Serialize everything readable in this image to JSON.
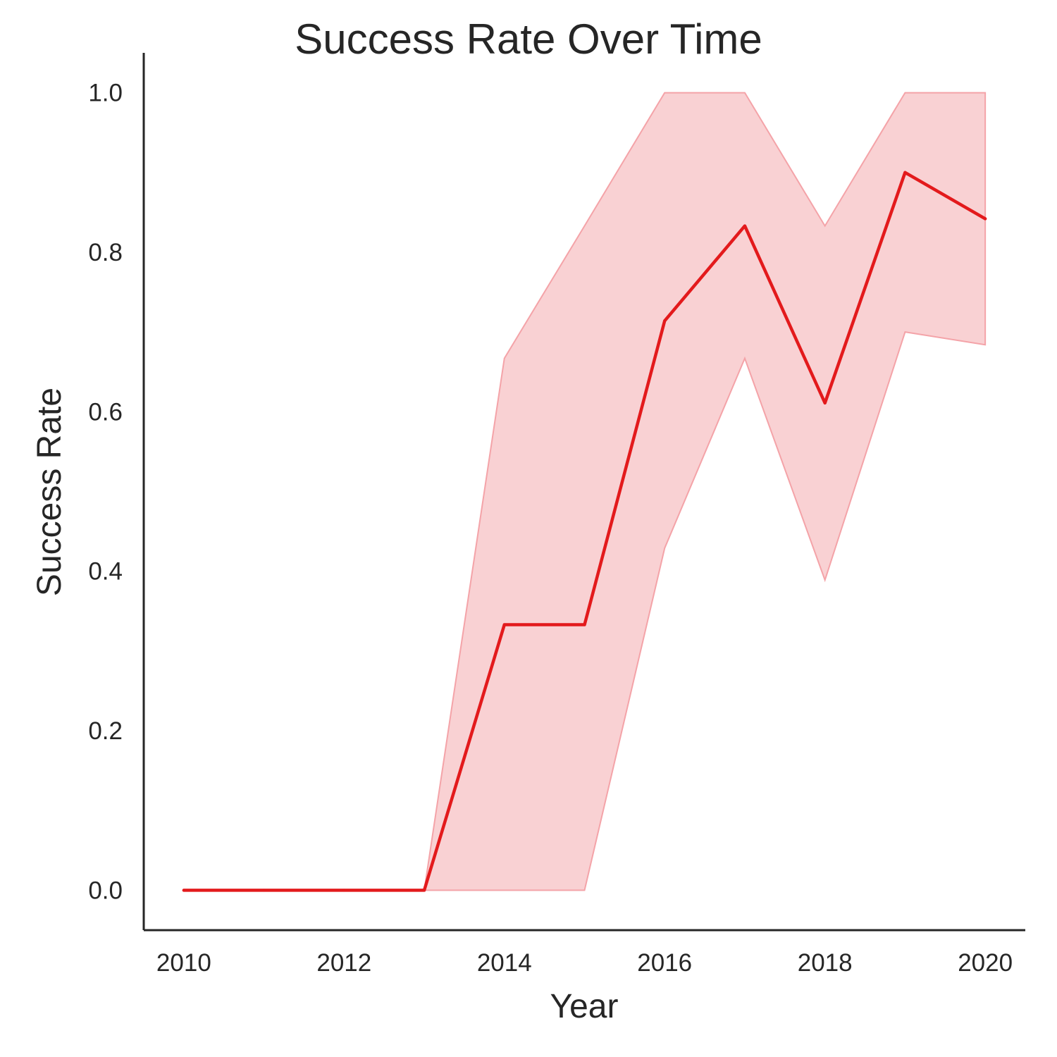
{
  "chart_data": {
    "type": "line",
    "title": "Success Rate Over Time",
    "xlabel": "Year",
    "ylabel": "Success Rate",
    "xlim": [
      2009.5,
      2020.5
    ],
    "ylim": [
      -0.05,
      1.05
    ],
    "x_ticks": [
      2010,
      2012,
      2014,
      2016,
      2018,
      2020
    ],
    "y_ticks": [
      0.0,
      0.2,
      0.4,
      0.6,
      0.8,
      1.0
    ],
    "y_tick_labels": [
      "0.0",
      "0.2",
      "0.4",
      "0.6",
      "0.8",
      "1.0"
    ],
    "grid": false,
    "series": [
      {
        "x": [
          2010,
          2011,
          2012,
          2013,
          2014,
          2015,
          2016,
          2017,
          2018,
          2019,
          2020
        ],
        "values": [
          0.0,
          0.0,
          0.0,
          0.0,
          0.333,
          0.333,
          0.714,
          0.833,
          0.611,
          0.9,
          0.842
        ],
        "ci_lower": [
          0.0,
          0.0,
          0.0,
          0.0,
          0.0,
          0.0,
          0.429,
          0.667,
          0.389,
          0.7,
          0.684
        ],
        "ci_upper": [
          0.0,
          0.0,
          0.0,
          0.0,
          0.667,
          0.833,
          1.0,
          1.0,
          0.833,
          1.0,
          1.0
        ],
        "color": "#e31a1c",
        "band_color": "#f4a3a8"
      }
    ]
  }
}
